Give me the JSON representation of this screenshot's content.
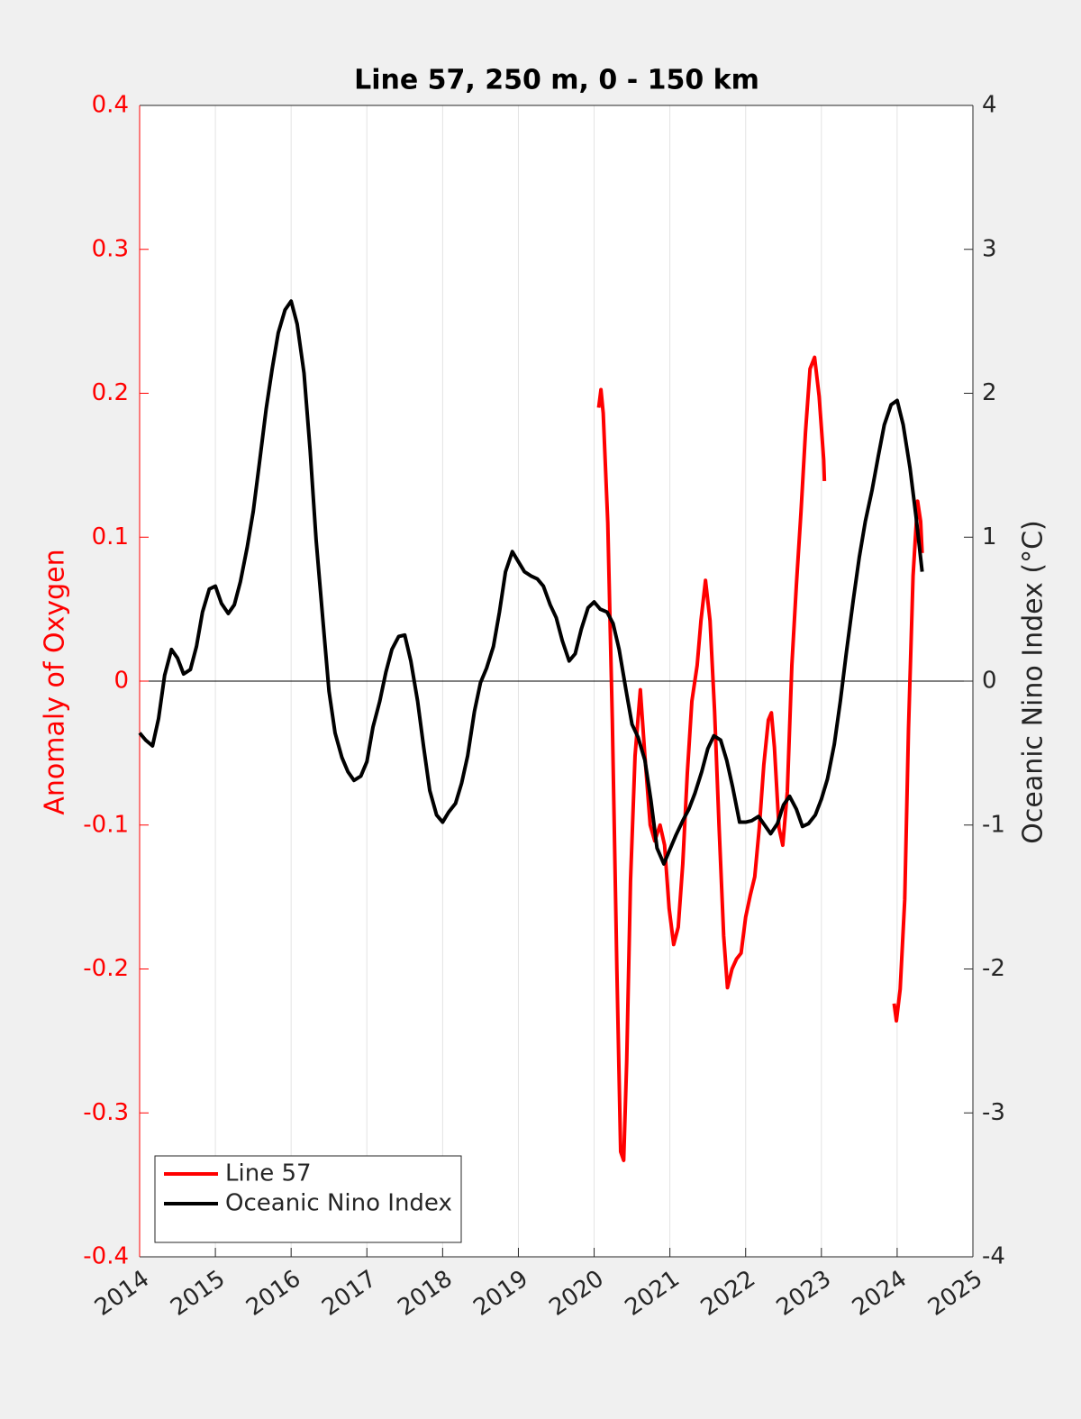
{
  "chart_data": {
    "type": "line",
    "title": "Line 57, 250 m, 0 - 150 km",
    "ylabel": "Anomaly of Oxygen",
    "y2label": "Oceanic Nino Index (°C)",
    "xlim": [
      2014,
      2025
    ],
    "xticks": [
      2014,
      2015,
      2016,
      2017,
      2018,
      2019,
      2020,
      2021,
      2022,
      2023,
      2024,
      2025
    ],
    "ylim": [
      -0.4,
      0.4
    ],
    "yticks": [
      -0.4,
      -0.3,
      -0.2,
      -0.1,
      0,
      0.1,
      0.2,
      0.3,
      0.4
    ],
    "y2lim": [
      -4,
      4
    ],
    "y2ticks": [
      -4,
      -3,
      -2,
      -1,
      0,
      1,
      2,
      3,
      4
    ],
    "ycolor": "#ff0000",
    "grid": true,
    "zero_line": true,
    "legend": "lower left",
    "series": [
      {
        "name": "Line 57",
        "color": "#ff0000",
        "axis": "y",
        "x": [
          2020.06,
          2020.09,
          2020.12,
          2020.18,
          2020.24,
          2020.3,
          2020.35,
          2020.39,
          2020.43,
          2020.48,
          2020.54,
          2020.61,
          2020.67,
          2020.74,
          2020.8,
          2020.87,
          2020.93,
          2020.99,
          2021.05,
          2021.11,
          2021.17,
          2021.23,
          2021.29,
          2021.36,
          2021.41,
          2021.47,
          2021.53,
          2021.59,
          2021.65,
          2021.71,
          2021.76,
          2021.82,
          2021.88,
          2021.94,
          2022.0,
          2022.06,
          2022.12,
          2022.18,
          2022.24,
          2022.3,
          2022.34,
          2022.38,
          2022.44,
          2022.49,
          2022.55,
          2022.61,
          2022.67,
          2022.73,
          2022.79,
          2022.85,
          2022.91,
          2022.97,
          2023.03,
          2023.04,
          null,
          2023.96,
          2023.99,
          2024.04,
          2024.1,
          2024.15,
          2024.21,
          2024.27,
          2024.31,
          2024.33
        ],
        "values": [
          0.19,
          0.2025,
          0.186,
          0.11,
          -0.027,
          -0.2,
          -0.327,
          -0.333,
          -0.264,
          -0.139,
          -0.052,
          -0.006,
          -0.052,
          -0.1,
          -0.111,
          -0.1,
          -0.114,
          -0.158,
          -0.183,
          -0.171,
          -0.127,
          -0.064,
          -0.014,
          0.011,
          0.042,
          0.07,
          0.042,
          -0.021,
          -0.102,
          -0.177,
          -0.213,
          -0.2,
          -0.193,
          -0.189,
          -0.164,
          -0.149,
          -0.136,
          -0.102,
          -0.058,
          -0.027,
          -0.022,
          -0.046,
          -0.102,
          -0.114,
          -0.077,
          0.011,
          0.067,
          0.117,
          0.173,
          0.217,
          0.225,
          0.198,
          0.154,
          0.139,
          null,
          -0.224,
          -0.236,
          -0.214,
          -0.152,
          -0.033,
          0.073,
          0.125,
          0.111,
          0.089
        ]
      },
      {
        "name": "Oceanic Nino Index",
        "color": "#000000",
        "axis": "y2",
        "x": [
          2014.0,
          2014.08,
          2014.17,
          2014.25,
          2014.33,
          2014.42,
          2014.5,
          2014.58,
          2014.67,
          2014.75,
          2014.83,
          2014.92,
          2015.0,
          2015.08,
          2015.17,
          2015.25,
          2015.33,
          2015.42,
          2015.5,
          2015.58,
          2015.67,
          2015.75,
          2015.83,
          2015.92,
          2016.0,
          2016.08,
          2016.17,
          2016.25,
          2016.33,
          2016.42,
          2016.5,
          2016.58,
          2016.67,
          2016.75,
          2016.83,
          2016.92,
          2017.0,
          2017.08,
          2017.17,
          2017.25,
          2017.33,
          2017.42,
          2017.5,
          2017.58,
          2017.67,
          2017.75,
          2017.83,
          2017.92,
          2018.0,
          2018.08,
          2018.17,
          2018.25,
          2018.33,
          2018.42,
          2018.5,
          2018.58,
          2018.67,
          2018.75,
          2018.83,
          2018.92,
          2019.0,
          2019.08,
          2019.17,
          2019.25,
          2019.33,
          2019.42,
          2019.5,
          2019.58,
          2019.67,
          2019.75,
          2019.83,
          2019.92,
          2020.0,
          2020.08,
          2020.17,
          2020.25,
          2020.33,
          2020.42,
          2020.5,
          2020.58,
          2020.67,
          2020.75,
          2020.83,
          2020.92,
          2021.0,
          2021.08,
          2021.17,
          2021.25,
          2021.33,
          2021.42,
          2021.5,
          2021.58,
          2021.67,
          2021.75,
          2021.83,
          2021.92,
          2022.0,
          2022.08,
          2022.17,
          2022.25,
          2022.33,
          2022.42,
          2022.5,
          2022.58,
          2022.67,
          2022.75,
          2022.83,
          2022.92,
          2023.0,
          2023.08,
          2023.17,
          2023.25,
          2023.33,
          2023.42,
          2023.5,
          2023.58,
          2023.67,
          2023.75,
          2023.83,
          2023.92,
          2024.0,
          2024.08,
          2024.17,
          2024.25,
          2024.33
        ],
        "values": [
          -0.36,
          -0.41,
          -0.45,
          -0.26,
          0.04,
          0.22,
          0.16,
          0.05,
          0.08,
          0.24,
          0.48,
          0.64,
          0.66,
          0.54,
          0.47,
          0.53,
          0.69,
          0.93,
          1.18,
          1.51,
          1.89,
          2.17,
          2.42,
          2.58,
          2.64,
          2.48,
          2.14,
          1.61,
          0.98,
          0.42,
          -0.07,
          -0.36,
          -0.53,
          -0.63,
          -0.69,
          -0.66,
          -0.56,
          -0.32,
          -0.14,
          0.06,
          0.22,
          0.31,
          0.32,
          0.14,
          -0.14,
          -0.46,
          -0.76,
          -0.93,
          -0.98,
          -0.91,
          -0.85,
          -0.71,
          -0.52,
          -0.21,
          -0.01,
          0.09,
          0.24,
          0.48,
          0.76,
          0.9,
          0.83,
          0.76,
          0.73,
          0.71,
          0.66,
          0.53,
          0.44,
          0.28,
          0.14,
          0.19,
          0.36,
          0.51,
          0.55,
          0.5,
          0.48,
          0.4,
          0.22,
          -0.06,
          -0.3,
          -0.39,
          -0.55,
          -0.83,
          -1.16,
          -1.27,
          -1.17,
          -1.07,
          -0.97,
          -0.89,
          -0.78,
          -0.63,
          -0.47,
          -0.38,
          -0.41,
          -0.55,
          -0.74,
          -0.98,
          -0.98,
          -0.97,
          -0.94,
          -1.0,
          -1.06,
          -0.99,
          -0.86,
          -0.8,
          -0.89,
          -1.01,
          -0.99,
          -0.93,
          -0.82,
          -0.68,
          -0.44,
          -0.14,
          0.2,
          0.56,
          0.86,
          1.11,
          1.33,
          1.56,
          1.78,
          1.92,
          1.95,
          1.78,
          1.48,
          1.14,
          0.76
        ]
      }
    ]
  }
}
